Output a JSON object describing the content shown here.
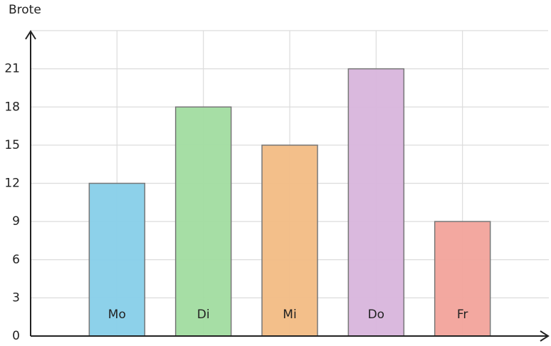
{
  "chart_data": {
    "type": "bar",
    "y_label": "Brote",
    "categories": [
      "Mo",
      "Di",
      "Mi",
      "Do",
      "Fr"
    ],
    "values": [
      12,
      18,
      15,
      21,
      9
    ],
    "colors": [
      "#87cfe9",
      "#a1dca0",
      "#f2bc84",
      "#d8b5dc",
      "#f2a39b"
    ],
    "ylim": [
      0,
      24
    ],
    "yticks": [
      0,
      3,
      6,
      9,
      12,
      15,
      18,
      21
    ],
    "grid": true
  }
}
